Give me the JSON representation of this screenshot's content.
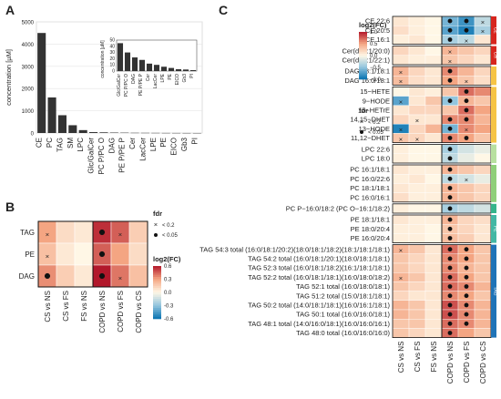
{
  "panels": {
    "a": "A",
    "b": "B",
    "c": "C"
  },
  "chart_data": [
    {
      "type": "bar",
      "ylabel": "concentration [µM]",
      "categories": [
        "CE",
        "PC",
        "TAG",
        "SM",
        "LPC",
        "Glc/GalCer",
        "PC P/PC O",
        "DAG",
        "PE P/PE P",
        "Cer",
        "LacCer",
        "LPE",
        "PE",
        "EICO",
        "Gb3",
        "PI"
      ],
      "values": [
        4500,
        1600,
        800,
        350,
        130,
        40,
        30,
        20,
        15,
        10,
        8,
        6,
        4,
        3,
        2,
        1
      ],
      "ylim": [
        0,
        5000
      ],
      "yticks": [
        "0",
        "1000",
        "2000",
        "3000",
        "4000",
        "5000"
      ],
      "inset": {
        "ylabel": "concentration [µM]",
        "categories": [
          "Glc/GalCer",
          "PC P/PC O",
          "DAG",
          "PE P/PE P",
          "Cer",
          "LacCer",
          "LPE",
          "PE",
          "EICO",
          "Gb3",
          "PI"
        ],
        "values": [
          45,
          30,
          22,
          18,
          12,
          10,
          7,
          5,
          3,
          2.5,
          1.5
        ],
        "ylim": [
          0,
          50
        ],
        "yticks": [
          "0",
          "10",
          "20",
          "30",
          "40",
          "50"
        ]
      }
    },
    {
      "type": "heatmap",
      "rows": [
        "TAG",
        "PE",
        "DAG"
      ],
      "columns": [
        "CS vs NS",
        "CS vs FS",
        "FS vs NS",
        "COPD vs NS",
        "COPD vs FS",
        "COPD vs CS"
      ],
      "values": [
        [
          0.3,
          0.1,
          0.05,
          0.55,
          0.45,
          0.15
        ],
        [
          0.2,
          0.05,
          0.0,
          0.45,
          0.3,
          0.1
        ],
        [
          0.35,
          0.15,
          0.05,
          0.6,
          0.4,
          0.2
        ]
      ],
      "marks": [
        [
          "x",
          "",
          "",
          "*",
          "x",
          ""
        ],
        [
          "x",
          "",
          "",
          "*",
          "",
          ""
        ],
        [
          "*",
          "",
          "",
          "*",
          "x",
          ""
        ]
      ],
      "fdr_title": "fdr",
      "fdr_entries": [
        "< 0.2",
        "< 0.05"
      ],
      "color_title": "log2(FC)",
      "color_ticks": [
        "0.6",
        "0.3",
        "0.0",
        "-0.3",
        "-0.6"
      ],
      "clim": [
        -0.6,
        0.6
      ]
    },
    {
      "type": "heatmap",
      "rows": [
        "CE 22:6",
        "CE 20:5",
        "CE 16:1",
        "Cer(d18:1/20:0)",
        "Cer(d18:1/22:1)",
        "DAG 18:1/18:1",
        "DAG 16:0/18:1",
        "15−HETE",
        "9−HODE",
        "15−HETrE",
        "14,15−DHET",
        "13−HODE",
        "11,12−DHET",
        "LPC 22:6",
        "LPC 18:0",
        "PC 16:1/18:1",
        "PC 16:0/22:6",
        "PC 18:1/18:1",
        "PC 16:0/16:1",
        "PC P−16:0/18:2 (PC O−16:1/18:2)",
        "PE 18:1/18:1",
        "PE 18:0/20:4",
        "PE 16:0/20:4",
        "TAG 54:3 total (16:0/18:1/20:2)(18:0/18:1/18:2)(18:1/18:1/18:1)",
        "TAG 54:2 total (16:0/18:1/20:1)(18:0/18:1/18:1)",
        "TAG 52:3 total (16:0/18:1/18:2)(16:1/18:1/18:1)",
        "TAG 52:2 total (16:0/18:1/18:1)(16:0/18:0/18:2)",
        "TAG 52:1 total (16:0/18:0/18:1)",
        "TAG 51:2 total (15:0/18:1/18:1)",
        "TAG 50:2 total (14:0/18:1/18:1)(16:0/16:1/18:1)",
        "TAG 50:1 total (16:0/16:0/18:1)",
        "TAG 48:1 total (14:0/16:0/18:1)(16:0/16:0/16:1)",
        "TAG 48:0 total (16:0/16:0/16:0)"
      ],
      "columns": [
        "CS vs NS",
        "CS vs FS",
        "FS vs NS",
        "COPD vs NS",
        "COPD vs FS",
        "COPD vs CS"
      ],
      "values": [
        [
          0.1,
          0.05,
          0.0,
          -0.6,
          -0.8,
          -0.3
        ],
        [
          0.15,
          0.05,
          0.0,
          -0.7,
          -0.9,
          -0.4
        ],
        [
          0.05,
          0.1,
          0.0,
          -0.4,
          -0.3,
          0.1
        ],
        [
          0.2,
          0.1,
          0.0,
          0.4,
          0.3,
          0.2
        ],
        [
          0.1,
          0.05,
          0.05,
          0.3,
          0.2,
          0.1
        ],
        [
          0.4,
          0.2,
          0.1,
          0.6,
          0.4,
          0.2
        ],
        [
          0.35,
          0.15,
          0.1,
          0.5,
          0.3,
          0.15
        ],
        [
          0.0,
          0.1,
          0.05,
          0.3,
          0.7,
          0.6
        ],
        [
          -0.7,
          0.1,
          0.3,
          -0.5,
          0.4,
          0.3
        ],
        [
          0.1,
          0.2,
          0.2,
          0.3,
          0.7,
          0.5
        ],
        [
          0.2,
          0.1,
          0.1,
          0.6,
          0.6,
          0.4
        ],
        [
          -0.9,
          0.2,
          0.4,
          -0.6,
          0.6,
          0.5
        ],
        [
          0.3,
          0.2,
          0.1,
          0.6,
          0.5,
          0.3
        ],
        [
          0.05,
          0.0,
          0.0,
          -0.4,
          -0.2,
          -0.1
        ],
        [
          0.05,
          0.0,
          0.0,
          -0.3,
          -0.1,
          0.0
        ],
        [
          0.1,
          0.05,
          0.05,
          0.4,
          0.3,
          0.2
        ],
        [
          0.05,
          0.1,
          0.0,
          -0.3,
          -0.2,
          -0.1
        ],
        [
          0.1,
          0.05,
          0.05,
          0.4,
          0.3,
          0.2
        ],
        [
          0.15,
          0.05,
          0.05,
          0.4,
          0.3,
          0.2
        ],
        [
          0.05,
          0.0,
          0.0,
          -0.4,
          -0.3,
          -0.2
        ],
        [
          0.1,
          0.05,
          0.05,
          0.4,
          0.2,
          0.15
        ],
        [
          0.05,
          0.05,
          0.0,
          0.3,
          0.2,
          0.1
        ],
        [
          0.05,
          0.05,
          0.0,
          0.35,
          0.25,
          0.1
        ],
        [
          0.4,
          0.3,
          0.1,
          0.7,
          0.5,
          0.3
        ],
        [
          0.3,
          0.2,
          0.1,
          0.6,
          0.5,
          0.3
        ],
        [
          0.3,
          0.2,
          0.1,
          0.6,
          0.4,
          0.3
        ],
        [
          0.4,
          0.3,
          0.1,
          0.7,
          0.5,
          0.3
        ],
        [
          0.3,
          0.2,
          0.1,
          0.7,
          0.6,
          0.4
        ],
        [
          0.2,
          0.1,
          0.1,
          0.6,
          0.5,
          0.3
        ],
        [
          0.4,
          0.3,
          0.1,
          0.8,
          0.6,
          0.4
        ],
        [
          0.4,
          0.3,
          0.1,
          0.8,
          0.6,
          0.4
        ],
        [
          0.3,
          0.3,
          0.1,
          0.7,
          0.6,
          0.4
        ],
        [
          0.3,
          0.2,
          0.1,
          0.7,
          0.5,
          0.3
        ]
      ],
      "marks": [
        [
          "",
          "",
          "",
          "*",
          "*",
          "x"
        ],
        [
          "",
          "",
          "",
          "*",
          "*",
          "x"
        ],
        [
          "",
          "",
          "",
          "*",
          "x",
          ""
        ],
        [
          "",
          "",
          "",
          "x",
          "",
          ""
        ],
        [
          "",
          "",
          "",
          "x",
          "",
          ""
        ],
        [
          "x",
          "",
          "",
          "*",
          "",
          ""
        ],
        [
          "x",
          "",
          "",
          "*",
          "x",
          ""
        ],
        [
          "",
          "",
          "",
          "",
          "*",
          ""
        ],
        [
          "x",
          "",
          "",
          "*",
          "*",
          ""
        ],
        [
          "",
          "",
          "",
          "",
          "*",
          ""
        ],
        [
          "",
          "x",
          "",
          "*",
          "*",
          ""
        ],
        [
          "x",
          "",
          "",
          "*",
          "x",
          ""
        ],
        [
          "x",
          "x",
          "",
          "*",
          "*",
          ""
        ],
        [
          "",
          "",
          "",
          "*",
          "",
          ""
        ],
        [
          "",
          "",
          "",
          "*",
          "",
          ""
        ],
        [
          "",
          "",
          "",
          "*",
          "",
          ""
        ],
        [
          "",
          "",
          "",
          "*",
          "x",
          ""
        ],
        [
          "",
          "",
          "",
          "*",
          "",
          ""
        ],
        [
          "",
          "",
          "",
          "*",
          "",
          ""
        ],
        [
          "",
          "",
          "",
          "*",
          "",
          ""
        ],
        [
          "",
          "",
          "",
          "*",
          "",
          ""
        ],
        [
          "",
          "",
          "",
          "*",
          "",
          ""
        ],
        [
          "",
          "",
          "",
          "*",
          "",
          ""
        ],
        [
          "x",
          "",
          "",
          "*",
          "*",
          ""
        ],
        [
          "",
          "",
          "",
          "*",
          "*",
          ""
        ],
        [
          "",
          "",
          "",
          "*",
          "*",
          ""
        ],
        [
          "x",
          "",
          "",
          "*",
          "*",
          ""
        ],
        [
          "",
          "",
          "",
          "*",
          "*",
          ""
        ],
        [
          "",
          "",
          "",
          "*",
          "*",
          ""
        ],
        [
          "",
          "",
          "",
          "*",
          "*",
          ""
        ],
        [
          "",
          "",
          "",
          "*",
          "*",
          ""
        ],
        [
          "",
          "",
          "",
          "*",
          "*",
          ""
        ],
        [
          "",
          "",
          "",
          "*",
          "",
          ""
        ]
      ],
      "groups": [
        {
          "label": "CE",
          "rows": 3,
          "color": "#d7261e"
        },
        {
          "label": "Cer",
          "rows": 2,
          "color": "#d7261e"
        },
        {
          "label": "",
          "rows": 2,
          "color": "#f6c445"
        },
        {
          "label": "",
          "rows": 6,
          "color": "#f6c445"
        },
        {
          "label": "",
          "rows": 2,
          "color": "#b8e0a0"
        },
        {
          "label": "",
          "rows": 4,
          "color": "#8fcf7a"
        },
        {
          "label": "",
          "rows": 1,
          "color": "#35b48b"
        },
        {
          "label": "PE",
          "rows": 3,
          "color": "#43b7a4"
        },
        {
          "label": "TAG",
          "rows": 10,
          "color": "#1f73b7"
        }
      ],
      "fdr_title": "fdr",
      "fdr_entries": [
        "< 0.2",
        "< 0.05"
      ],
      "color_title": "log2(FC)",
      "color_ticks": [
        "1.0",
        "0.5",
        "0.0",
        "−0.5",
        "−1.0"
      ],
      "clim": [
        -1.0,
        1.0
      ]
    }
  ]
}
